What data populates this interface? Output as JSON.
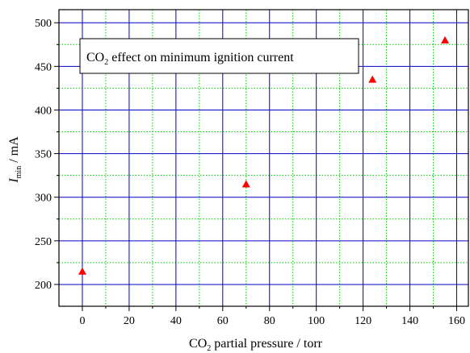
{
  "chart_data": {
    "type": "scatter",
    "title": "CO₂ effect on minimum ignition current",
    "title_parts": {
      "pre": "CO",
      "sub": "2",
      "post": " effect on minimum ignition current"
    },
    "xlabel": "CO₂ partial pressure / torr",
    "xlabel_parts": {
      "pre": "CO",
      "sub": "2",
      "post": " partial pressure / torr"
    },
    "ylabel": "I_min / mA",
    "ylabel_parts": {
      "main": "I",
      "sub": "min",
      "post": " / mA"
    },
    "xlim": [
      -10,
      165
    ],
    "ylim": [
      175,
      515
    ],
    "xticks": [
      0,
      20,
      40,
      60,
      80,
      100,
      120,
      140,
      160
    ],
    "yticks": [
      200,
      250,
      300,
      350,
      400,
      450,
      500
    ],
    "x_minor_step": 10,
    "y_minor_step": 25,
    "grid": true,
    "marker": "triangle",
    "colors": {
      "points": "#ff0000",
      "major_grid": "#0000cc",
      "minor_grid": "#00cc00",
      "axes": "#000000"
    },
    "series": [
      {
        "points": [
          {
            "x": 0,
            "y": 215
          },
          {
            "x": 70,
            "y": 315
          },
          {
            "x": 124,
            "y": 435
          },
          {
            "x": 155,
            "y": 480
          }
        ]
      }
    ]
  }
}
